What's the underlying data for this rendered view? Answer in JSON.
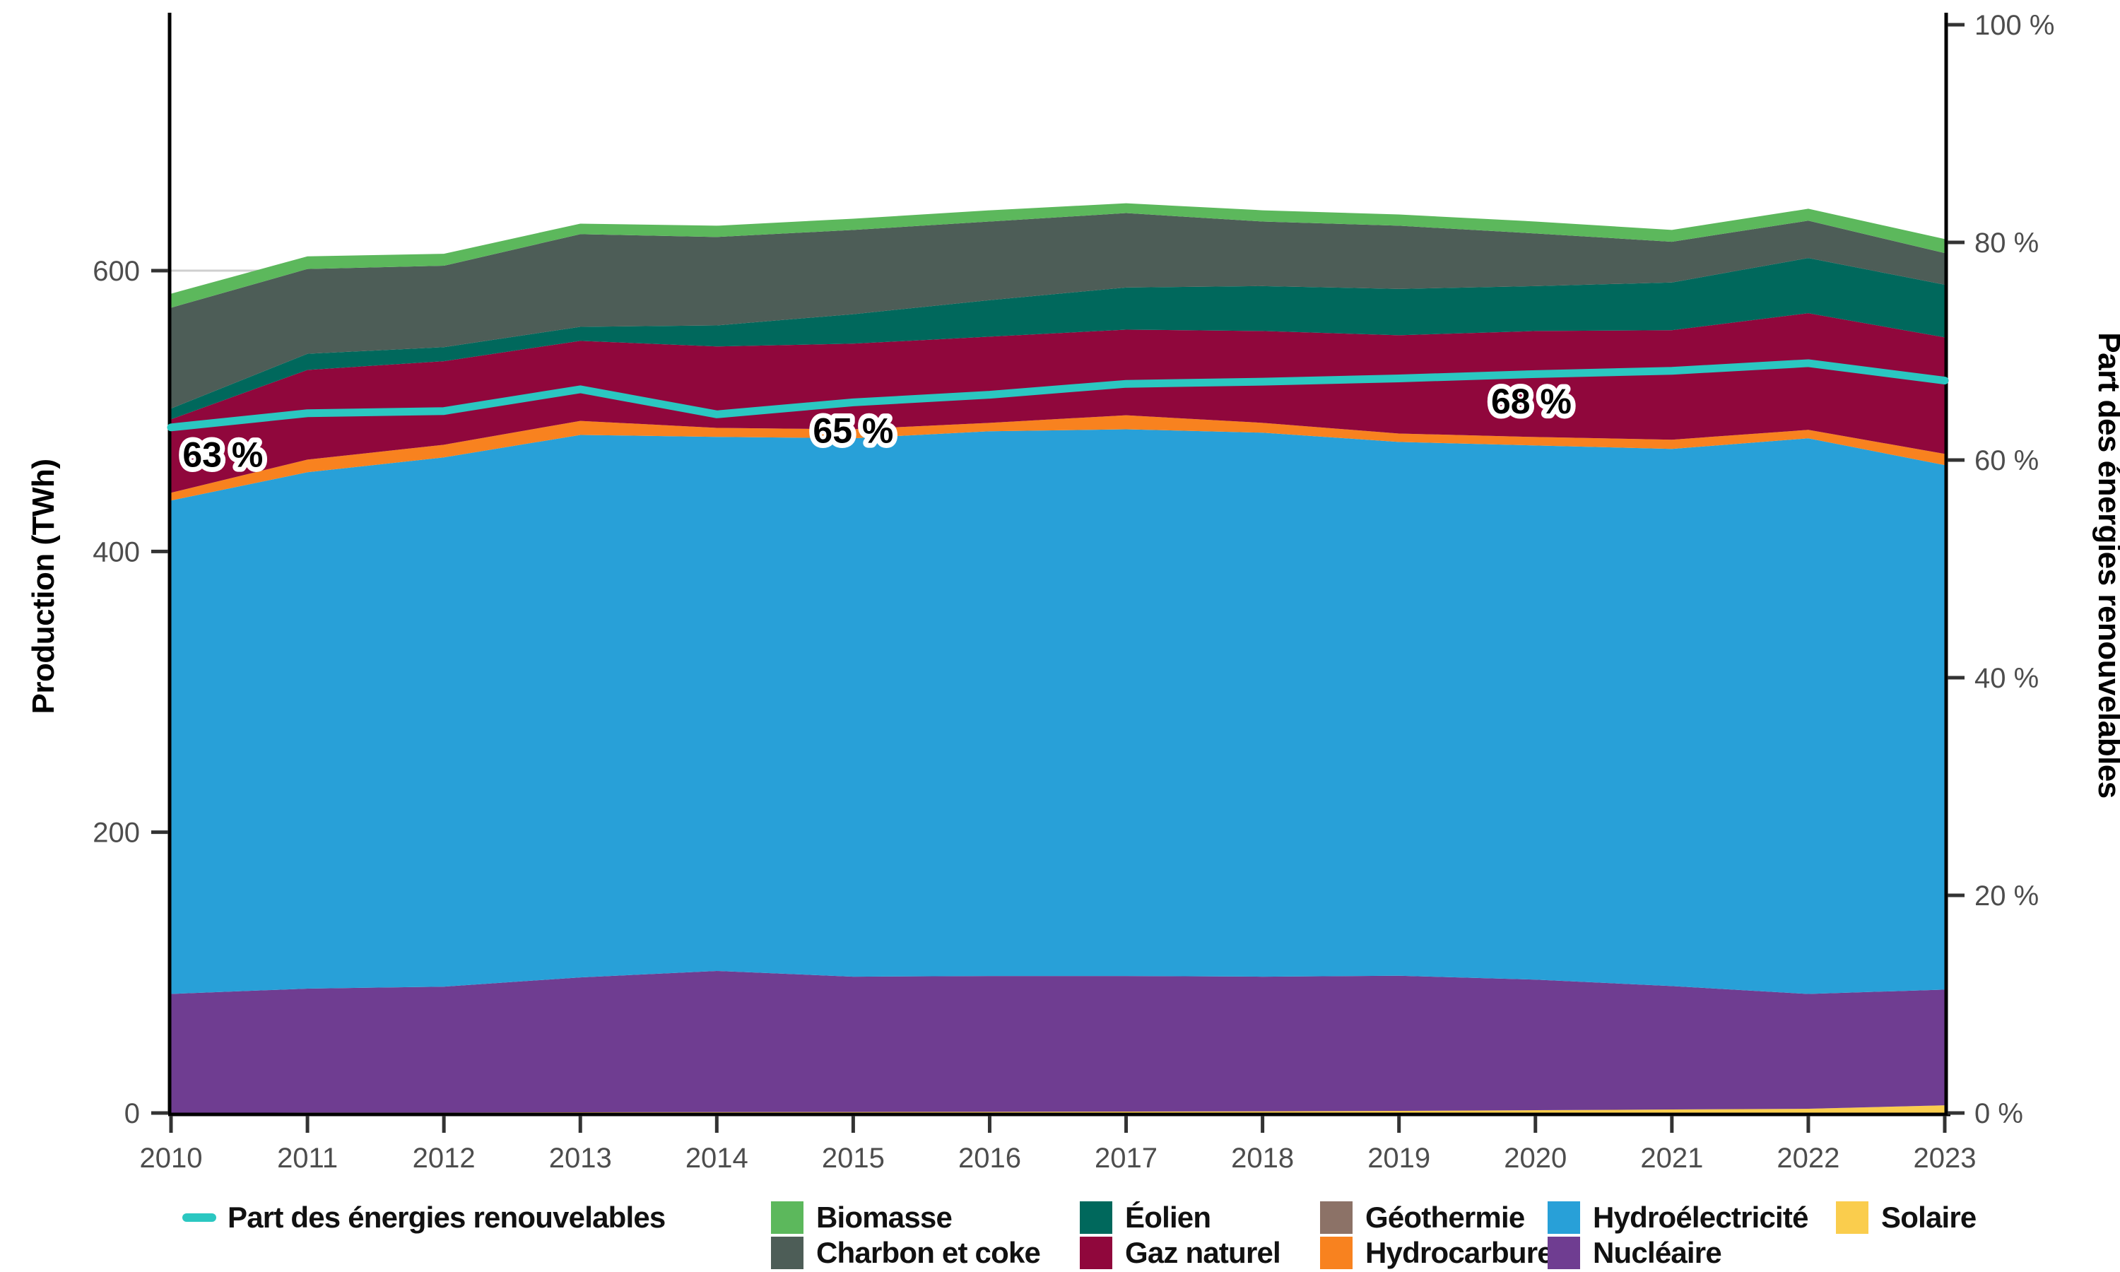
{
  "axes": {
    "left": {
      "title": "Production (TWh)",
      "tick_values": [
        0,
        200,
        400,
        600
      ],
      "tick_labels": [
        "0",
        "200",
        "400",
        "600"
      ]
    },
    "bottom": {
      "tick_labels": [
        "2010",
        "2011",
        "2012",
        "2013",
        "2014",
        "2015",
        "2016",
        "2017",
        "2018",
        "2019",
        "2020",
        "2021",
        "2022",
        "2023"
      ]
    },
    "right": {
      "title": "Part des énergies renouvelables",
      "tick_values": [
        0,
        20,
        40,
        60,
        80,
        100
      ],
      "tick_labels": [
        "0 %",
        "20 %",
        "40 %",
        "60 %",
        "80 %",
        "100 %"
      ]
    }
  },
  "colors": {
    "axis_line": "#000000",
    "tick_mark": "#333333",
    "tick_label": "#4d4d4d",
    "gridline": "#cfcfcf",
    "annotation_text": "#000000",
    "annotation_halo": "#ffffff"
  },
  "chart_data": {
    "type": "area",
    "title": "",
    "xlabel": "",
    "ylabel_left": "Production (TWh)",
    "ylabel_right": "Part des énergies renouvelables",
    "x": [
      2010,
      2011,
      2012,
      2013,
      2014,
      2015,
      2016,
      2017,
      2018,
      2019,
      2020,
      2021,
      2022,
      2023
    ],
    "ylim_left": [
      0,
      777
    ],
    "ylim_right": [
      0,
      100
    ],
    "gridline_at_twh": 600,
    "stack_order_bottom_to_top": [
      "solaire",
      "nucleaire",
      "hydroelectricite",
      "hydrocarbures",
      "geothermie",
      "gaz",
      "eolien",
      "charbon",
      "biomasse"
    ],
    "series": [
      {
        "key": "solaire",
        "name": "Solaire",
        "color": "#FACD4D",
        "values": [
          0.2,
          0.3,
          0.3,
          0.5,
          0.6,
          0.7,
          0.8,
          1,
          1.2,
          1.5,
          2,
          2.5,
          3,
          5.5
        ]
      },
      {
        "key": "nucleaire",
        "name": "Nucléaire",
        "color": "#6F3D91",
        "values": [
          84.6,
          88.3,
          89.7,
          96.1,
          100.6,
          96.4,
          96.8,
          96.6,
          95.9,
          96.3,
          93,
          87.9,
          81.8,
          82.4
        ]
      },
      {
        "key": "hydroelectricite",
        "name": "Hydroélectricité",
        "color": "#28A0D8",
        "values": [
          351.5,
          367.8,
          377,
          386.4,
          380.4,
          383.5,
          388,
          389.4,
          387.5,
          380.2,
          380.5,
          382.6,
          395.8,
          373.6
        ]
      },
      {
        "key": "hydrocarbures",
        "name": "Hydrocarbures",
        "color": "#F8821F",
        "values": [
          5.5,
          9,
          9,
          10,
          6.4,
          6.4,
          6,
          10,
          7,
          6,
          6,
          6.6,
          6,
          8
        ]
      },
      {
        "key": "geothermie",
        "name": "Géothermie",
        "color": "#8C7267",
        "values": [
          0,
          0,
          0,
          0,
          0,
          0,
          0,
          0,
          0,
          0,
          0,
          0,
          0,
          0
        ]
      },
      {
        "key": "gaz",
        "name": "Gaz naturel",
        "color": "#90073C",
        "values": [
          52.3,
          63.9,
          59.5,
          57,
          58,
          61,
          61.4,
          61,
          65.4,
          70,
          75.5,
          78,
          83.1,
          83
        ]
      },
      {
        "key": "eolien",
        "name": "Éolien",
        "color": "#00685C",
        "values": [
          7.7,
          11.5,
          10,
          10,
          15,
          21,
          26,
          30,
          32,
          33,
          32,
          34,
          39.3,
          37.5
        ]
      },
      {
        "key": "charbon",
        "name": "Charbon et coke",
        "color": "#4D5D57",
        "values": [
          71.8,
          60.4,
          58,
          66,
          63,
          60,
          56,
          53,
          46,
          45,
          37.5,
          29,
          26.6,
          22.5
        ]
      },
      {
        "key": "biomasse",
        "name": "Biomasse",
        "color": "#5CB85C",
        "values": [
          10,
          9,
          8.5,
          7.5,
          8,
          8,
          8,
          7,
          8,
          8,
          8.5,
          8.4,
          8.5,
          10
        ]
      }
    ],
    "line_series": {
      "key": "part_renouvelables",
      "name": "Part des énergies renouvelables",
      "axis": "right",
      "color": "#2BC7C1",
      "values_pct": [
        63,
        64.3,
        64.5,
        66.5,
        64.2,
        65.3,
        66,
        67,
        67.2,
        67.5,
        67.9,
        68.2,
        68.9,
        67.3
      ]
    },
    "annotations": [
      {
        "x_year": 2010.38,
        "y_pct": 60.5,
        "label": "63 %"
      },
      {
        "x_year": 2015.0,
        "y_pct": 62.7,
        "label": "65 %"
      },
      {
        "x_year": 2019.97,
        "y_pct": 65.4,
        "label": "68 %"
      }
    ],
    "legend_position": "bottom"
  },
  "legend": {
    "items": [
      {
        "label": "Part des énergies renouvelables",
        "color": "#2BC7C1",
        "type": "line"
      },
      {
        "label": "Biomasse",
        "color": "#5CB85C",
        "type": "box"
      },
      {
        "label": "Charbon et coke",
        "color": "#4D5D57",
        "type": "box"
      },
      {
        "label": "Éolien",
        "color": "#00685C",
        "type": "box"
      },
      {
        "label": "Gaz naturel",
        "color": "#90073C",
        "type": "box"
      },
      {
        "label": "Géothermie",
        "color": "#8C7267",
        "type": "box"
      },
      {
        "label": "Hydrocarbures",
        "color": "#F8821F",
        "type": "box"
      },
      {
        "label": "Hydroélectricité",
        "color": "#28A0D8",
        "type": "box"
      },
      {
        "label": "Nucléaire",
        "color": "#6F3D91",
        "type": "box"
      },
      {
        "label": "Solaire",
        "color": "#FACD4D",
        "type": "box"
      }
    ]
  }
}
